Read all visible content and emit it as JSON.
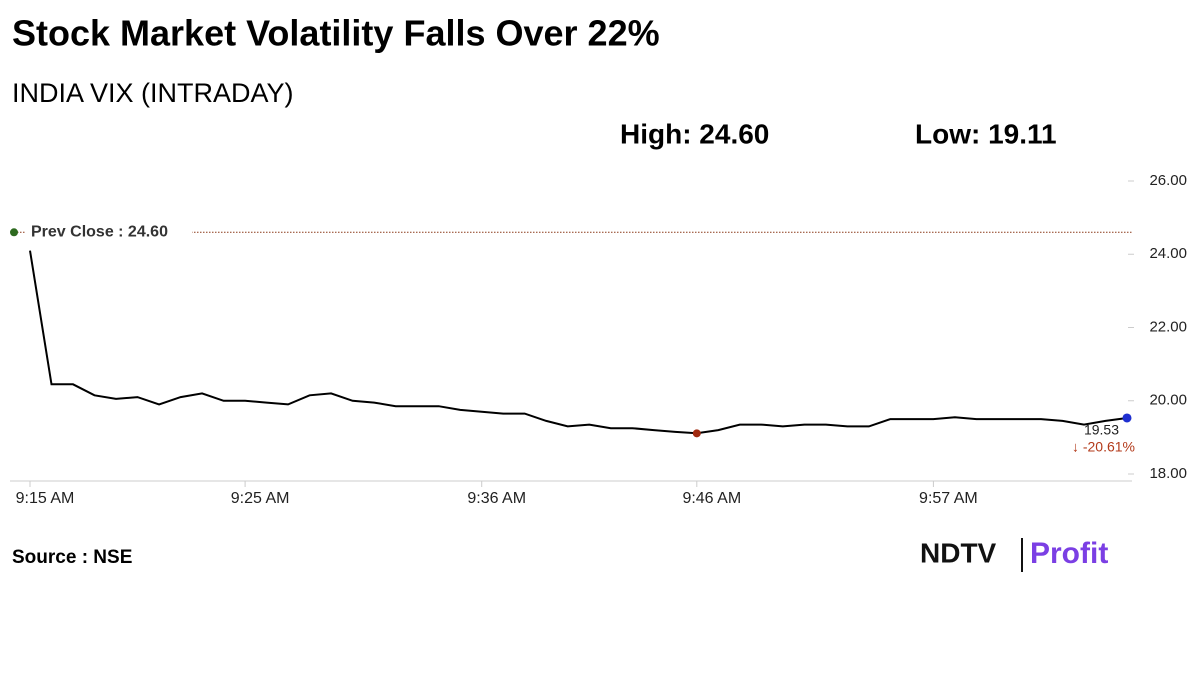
{
  "chart_data": {
    "type": "line",
    "title": "Stock Market Volatility Falls Over 22%",
    "subtitle": "INDIA VIX (INTRADAY)",
    "high_label": "High: 24.60",
    "low_label": "Low: 19.11",
    "categories": [
      "9:15 AM",
      null,
      null,
      null,
      null,
      null,
      null,
      null,
      null,
      null,
      "9:25 AM",
      null,
      null,
      null,
      null,
      null,
      null,
      null,
      null,
      null,
      null,
      "9:36 AM",
      null,
      null,
      null,
      null,
      null,
      null,
      null,
      null,
      null,
      "9:46 AM",
      null,
      null,
      null,
      null,
      null,
      null,
      null,
      null,
      null,
      null,
      "9:57 AM",
      null,
      null,
      null,
      null,
      null,
      null,
      null,
      null,
      null
    ],
    "values": [
      24.1,
      20.45,
      20.45,
      20.15,
      20.05,
      20.1,
      19.9,
      20.1,
      20.2,
      20.0,
      20.0,
      19.95,
      19.9,
      20.15,
      20.2,
      20.0,
      19.95,
      19.85,
      19.85,
      19.85,
      19.75,
      19.7,
      19.65,
      19.65,
      19.45,
      19.3,
      19.35,
      19.25,
      19.25,
      19.2,
      19.15,
      19.11,
      19.2,
      19.35,
      19.35,
      19.3,
      19.35,
      19.35,
      19.3,
      19.3,
      19.5,
      19.5,
      19.5,
      19.55,
      19.5,
      19.5,
      19.5,
      19.5,
      19.45,
      19.35,
      19.45,
      19.53
    ],
    "color": "#000000",
    "low_index": 31,
    "reference_line": {
      "value": 24.6,
      "label": "Prev Close : 24.60",
      "color": "#8b3a1a"
    },
    "change_label": "↓ -20.61%",
    "ylim": [
      18,
      26
    ],
    "yticks": [
      {
        "value": 18,
        "label": "18.00"
      },
      {
        "value": 20,
        "label": "20.00"
      },
      {
        "value": 22,
        "label": "22.00"
      },
      {
        "value": 24,
        "label": "24.00"
      },
      {
        "value": 26,
        "label": "26.00"
      }
    ]
  },
  "source": "Source : NSE",
  "logo": {
    "left": "NDTV",
    "right": "Profit"
  }
}
